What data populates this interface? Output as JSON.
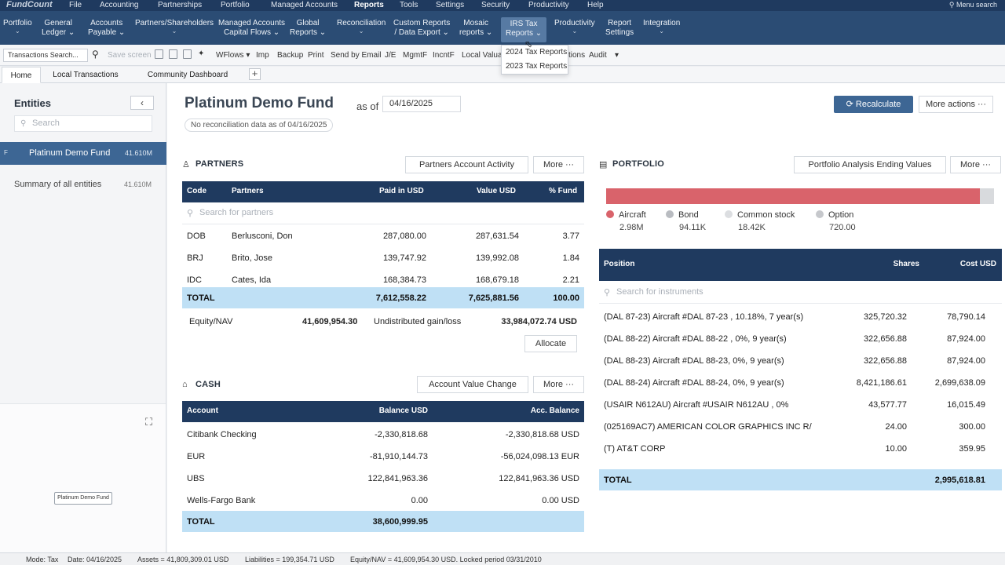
{
  "brand": "FundCount",
  "menubar": {
    "items": [
      "File",
      "Accounting",
      "Partnerships",
      "Portfolio",
      "Managed Accounts",
      "Reports",
      "Tools",
      "Settings",
      "Security",
      "Productivity",
      "Help"
    ],
    "active": "Reports",
    "search_label": "Menu search"
  },
  "ribbon": {
    "items": [
      {
        "l1": "Portfolio",
        "l2": "⌄"
      },
      {
        "l1": "General",
        "l2": "Ledger ⌄"
      },
      {
        "l1": "Accounts",
        "l2": "Payable ⌄"
      },
      {
        "l1": "Partners/Shareholders",
        "l2": "⌄"
      },
      {
        "l1": "Managed Accounts",
        "l2": "Capital Flows ⌄"
      },
      {
        "l1": "Global",
        "l2": "Reports ⌄"
      },
      {
        "l1": "Reconciliation",
        "l2": "⌄"
      },
      {
        "l1": "Custom Reports",
        "l2": "/ Data Export ⌄"
      },
      {
        "l1": "Mosaic",
        "l2": "reports ⌄"
      },
      {
        "l1": "IRS Tax",
        "l2": "Reports ⌄"
      },
      {
        "l1": "Productivity",
        "l2": "⌄"
      },
      {
        "l1": "Report",
        "l2": "Settings"
      },
      {
        "l1": "Integration",
        "l2": "⌄"
      }
    ],
    "dropdown": [
      "2024 Tax Reports",
      "2023 Tax Reports"
    ]
  },
  "toolbar": {
    "search_placeholder": "Transactions Search...",
    "save_screen": "Save screen",
    "items": [
      "WFlows ▾",
      "Imp",
      "Backup",
      "Print",
      "Send by Email",
      "J/E",
      "MgmtF",
      "IncntF",
      "Local Valua",
      "tions",
      "Audit",
      "▾"
    ]
  },
  "tabs": [
    "Home",
    "Local Transactions",
    "Community Dashboard"
  ],
  "sidebar": {
    "title": "Entities",
    "search_placeholder": "Search",
    "entity_flag": "F",
    "entity_name": "Platinum Demo Fund",
    "entity_value": "41.610M",
    "summary_label": "Summary of all entities",
    "summary_value": "41.610M",
    "node_label": "Platinum Demo Fund"
  },
  "header": {
    "fund_name": "Platinum Demo Fund",
    "as_of": "as of",
    "date": "04/16/2025",
    "recon_note": "No reconciliation data as of 04/16/2025",
    "recalculate": "Recalculate",
    "more_actions": "More actions ···"
  },
  "partners": {
    "title": "PARTNERS",
    "btn_activity": "Partners Account Activity",
    "btn_more": "More ···",
    "columns": [
      "Code",
      "Partners",
      "Paid in USD",
      "Value USD",
      "% Fund"
    ],
    "search_placeholder": "Search for partners",
    "rows": [
      [
        "DOB",
        "Berlusconi, Don",
        "287,080.00",
        "287,631.54",
        "3.77"
      ],
      [
        "BRJ",
        "Brito, Jose",
        "139,747.92",
        "139,992.08",
        "1.84"
      ],
      [
        "IDC",
        "Cates, Ida",
        "168,384.73",
        "168,679.18",
        "2.21"
      ]
    ],
    "total": [
      "TOTAL",
      "7,612,558.22",
      "7,625,881.56",
      "100.00"
    ],
    "equity_label": "Equity/NAV",
    "equity_value": "41,609,954.30",
    "undist_label": "Undistributed gain/loss",
    "undist_value": "33,984,072.74 USD",
    "allocate": "Allocate"
  },
  "cash": {
    "title": "CASH",
    "btn_change": "Account Value Change",
    "btn_more": "More ···",
    "columns": [
      "Account",
      "Balance USD",
      "Acc. Balance"
    ],
    "rows": [
      [
        "Citibank Checking",
        "-2,330,818.68",
        "-2,330,818.68 USD"
      ],
      [
        "EUR",
        "-81,910,144.73",
        "-56,024,098.13 EUR"
      ],
      [
        "UBS",
        "122,841,963.36",
        "122,841,963.36 USD"
      ],
      [
        "Wells-Fargo Bank",
        "0.00",
        "0.00 USD"
      ]
    ],
    "total": [
      "TOTAL",
      "38,600,999.95"
    ]
  },
  "portfolio": {
    "title": "PORTFOLIO",
    "btn_analysis": "Portfolio Analysis Ending Values",
    "btn_more": "More ···",
    "bar_fill_fraction": 0.963,
    "legend": [
      {
        "name": "Aircraft",
        "value": "2.98M",
        "color": "#d9636b"
      },
      {
        "name": "Bond",
        "value": "94.11K",
        "color": "#b9bcc1"
      },
      {
        "name": "Common stock",
        "value": "18.42K",
        "color": "#dcdee1"
      },
      {
        "name": "Option",
        "value": "720.00",
        "color": "#c6c8cc"
      }
    ],
    "columns": [
      "Position",
      "Shares",
      "Cost USD"
    ],
    "search_placeholder": "Search for instruments",
    "rows": [
      [
        "(DAL 87-23) Aircraft #DAL 87-23 , 10.18%, 7 year(s)",
        "325,720.32",
        "78,790.14"
      ],
      [
        "(DAL 88-22) Aircraft #DAL 88-22 , 0%, 9 year(s)",
        "322,656.88",
        "87,924.00"
      ],
      [
        "(DAL 88-23) Aircraft #DAL 88-23, 0%, 9 year(s)",
        "322,656.88",
        "87,924.00"
      ],
      [
        "(DAL 88-24) Aircraft #DAL 88-24, 0%, 9 year(s)",
        "8,421,186.61",
        "2,699,638.09"
      ],
      [
        "(USAIR N612AU) Aircraft #USAIR N612AU , 0%",
        "43,577.77",
        "16,015.49"
      ],
      [
        "(025169AC7) AMERICAN COLOR GRAPHICS INC R/",
        "24.00",
        "300.00"
      ],
      [
        "(T) AT&T CORP",
        "10.00",
        "359.95"
      ]
    ],
    "total": [
      "TOTAL",
      "2,995,618.81"
    ]
  },
  "statusbar": {
    "mode": "Mode: Tax",
    "date": "Date: 04/16/2025",
    "assets": "Assets = 41,809,309.01 USD",
    "liabilities": "Liabilities = 199,354.71 USD",
    "equity": "Equity/NAV = 41,609,954.30 USD. Locked period 03/31/2010"
  }
}
